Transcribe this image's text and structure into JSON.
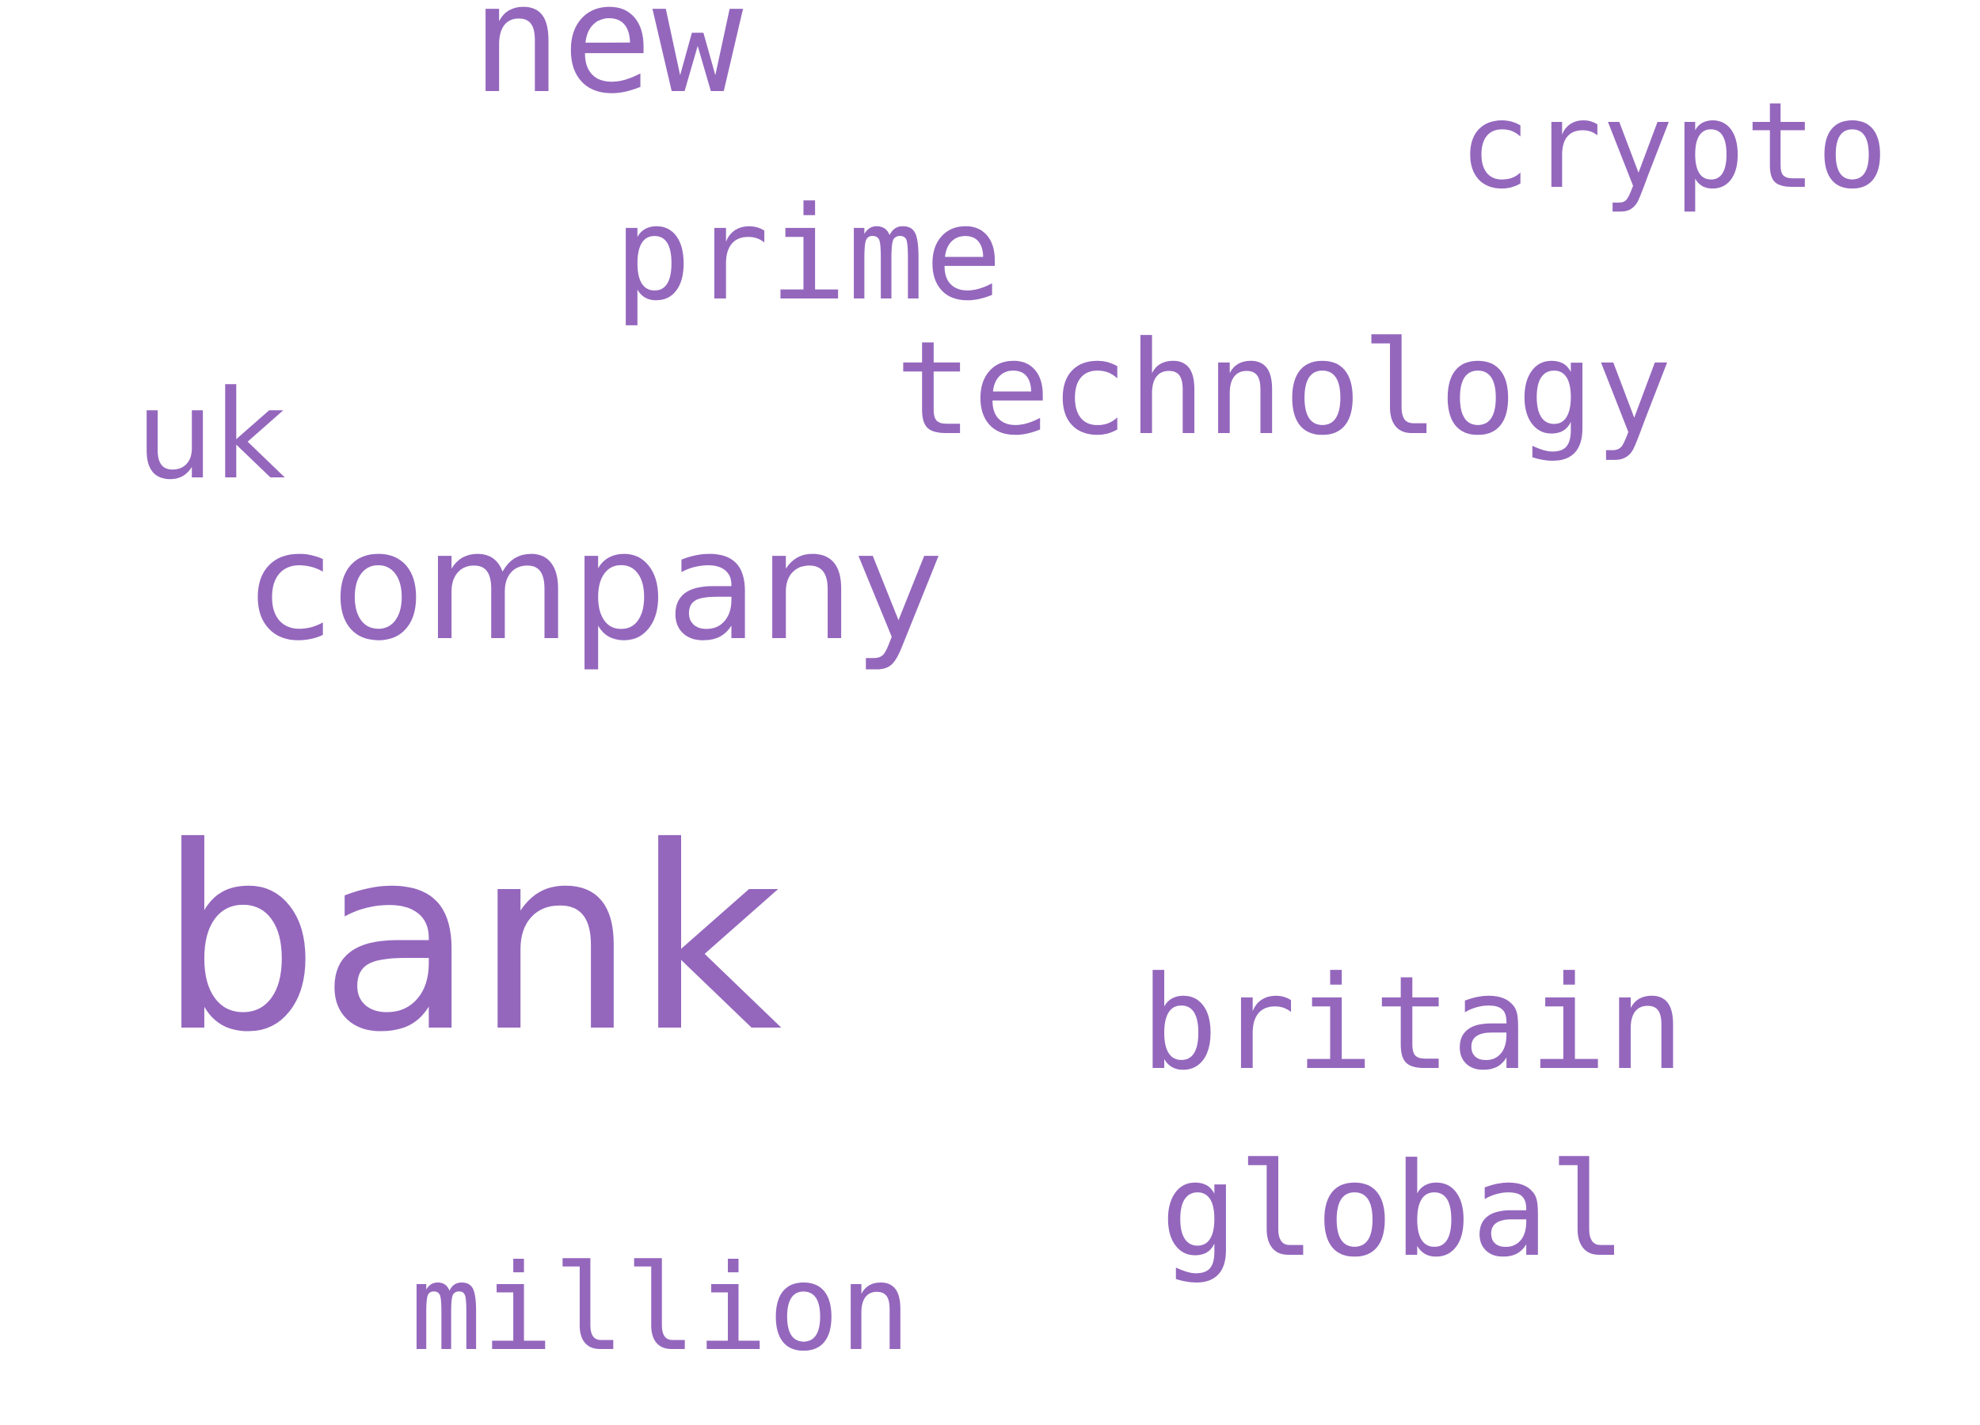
{
  "word_cloud": {
    "color": "#9467bd",
    "words": {
      "bank": "bank",
      "company": "company",
      "new": "new",
      "technology": "technology",
      "prime": "prime",
      "britain": "britain",
      "global": "global",
      "million": "million",
      "crypto": "crypto",
      "uk": "uk"
    }
  }
}
